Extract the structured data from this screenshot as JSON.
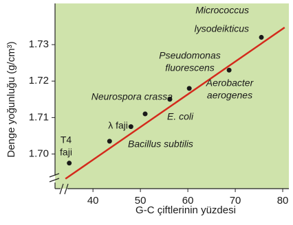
{
  "chart_data": {
    "type": "scatter",
    "x_label": "G-C çiftlerinin yüzdesi",
    "y_label": "Denge yoğunluğu (g/cm³)",
    "x": [
      35,
      43.5,
      48,
      51,
      56.2,
      60.3,
      68.7,
      75.5
    ],
    "values": [
      1.6975,
      1.7035,
      1.7075,
      1.711,
      1.715,
      1.718,
      1.723,
      1.732
    ],
    "labels": [
      [
        "T4",
        "faji"
      ],
      [
        "Bacillus subtilis"
      ],
      [
        "λ faji"
      ],
      [
        "E. coli"
      ],
      [
        "Neurospora crassa"
      ],
      [
        "Pseudomonas",
        "fluorescens"
      ],
      [
        "Aerobacter",
        "aerogenes"
      ],
      [
        "Micrococcus",
        "lysodeikticus"
      ]
    ],
    "color": "#1a1a1a",
    "fit_line": {
      "x": [
        34.2,
        80.4
      ],
      "y": [
        1.6932,
        1.7347
      ],
      "color": "#d42a1c"
    },
    "xlim": [
      32,
      81.3
    ],
    "ylim": [
      1.6905,
      1.7413
    ],
    "xticks": [
      40,
      50,
      60,
      70,
      80
    ],
    "yticks": [
      {
        "value": 1.7,
        "label": "1.70"
      },
      1.71,
      1.72,
      1.73
    ]
  }
}
